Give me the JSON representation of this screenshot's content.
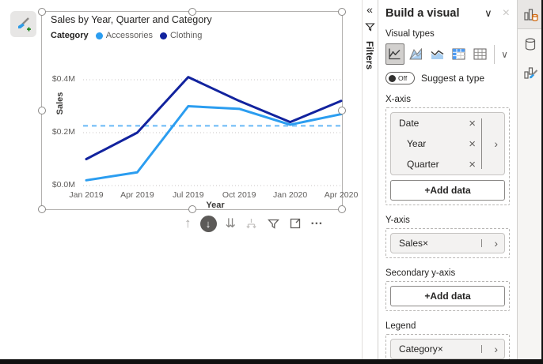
{
  "chart_data": {
    "type": "line",
    "title": "Sales by Year, Quarter and Category",
    "legend_title": "Category",
    "categories": [
      "Jan 2019",
      "Apr 2019",
      "Jul 2019",
      "Oct 2019",
      "Jan 2020",
      "Apr 2020"
    ],
    "series": [
      {
        "name": "Accessories",
        "color": "#2B9DF0",
        "values": [
          0.02,
          0.05,
          0.3,
          0.29,
          0.23,
          0.27
        ]
      },
      {
        "name": "Clothing",
        "color": "#12239E",
        "values": [
          0.1,
          0.2,
          0.41,
          0.32,
          0.24,
          0.32
        ]
      }
    ],
    "average_line": {
      "value": 0.226,
      "color": "#7FC3F8",
      "style": "dashed"
    },
    "xlabel": "Year",
    "ylabel": "Sales",
    "y_ticks": [
      "$0.0M",
      "$0.2M",
      "$0.4M"
    ],
    "y_tick_values": [
      0,
      0.2,
      0.4
    ],
    "ylim": [
      0,
      0.44
    ],
    "units": "$M",
    "grid": "dotted horizontal",
    "legend_position": "top"
  },
  "icons": {
    "collapse": "«",
    "chevron_down": "∨",
    "close": "×",
    "remove": "×",
    "field_expand": "›",
    "drill_up": "↑",
    "drill_down": "↓",
    "drill_next_level": "⇊",
    "more": "…"
  },
  "filters_rail": {
    "label": "Filters"
  },
  "panel": {
    "title": "Build a visual",
    "visual_types_label": "Visual types",
    "toggle_state": "Off",
    "suggest_label": "Suggest a type",
    "visual_types": [
      "line-chart",
      "area-chart",
      "line-and-stacked-area-chart",
      "matrix",
      "table"
    ],
    "x_axis": {
      "label": "X-axis",
      "fields": [
        "Date",
        "Year",
        "Quarter"
      ],
      "add_label": "+Add data"
    },
    "y_axis": {
      "label": "Y-axis",
      "field": "Sales"
    },
    "secondary_y_axis": {
      "label": "Secondary y-axis",
      "add_label": "+Add data"
    },
    "legend": {
      "label": "Legend",
      "field": "Category"
    }
  }
}
